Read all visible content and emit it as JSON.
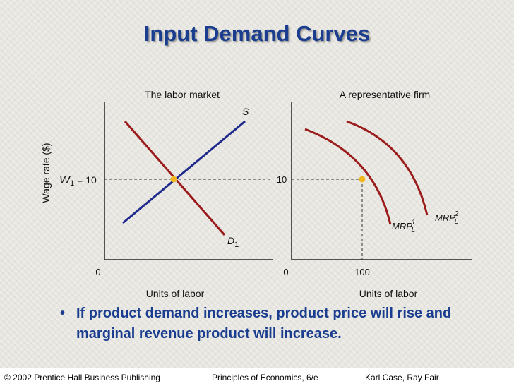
{
  "slide": {
    "title": "Input Demand Curves",
    "bullet": "If product demand increases, product price will rise and marginal revenue product will increase."
  },
  "footer": {
    "publisher": "© 2002 Prentice Hall Business Publishing",
    "book": "Principles of Economics, 6/e",
    "authors": "Karl Case, Ray Fair"
  },
  "labor_market": {
    "title": "The labor market",
    "ylabel": "Wage rate ($)",
    "xlabel": "Units of labor",
    "origin_label": "0",
    "wage_label": "W",
    "wage_subscript": "1",
    "wage_equals": " = 10",
    "supply_label": "S",
    "demand_label": "D",
    "demand_subscript": "1"
  },
  "firm": {
    "title": "A representative firm",
    "xlabel": "Units of labor",
    "origin_label": "0",
    "wage_tick": "10",
    "quantity_tick": "100",
    "mrp1_label": "MRP",
    "mrp1_sub": "L",
    "mrp1_sup": "1",
    "mrp2_label": "MRP",
    "mrp2_sub": "L",
    "mrp2_sup": "2"
  },
  "colors": {
    "title": "#1a3d8f",
    "supply": "#1f2a8c",
    "demand": "#9b1b1b",
    "equilibrium_dot": "#f2b61e",
    "axis": "#222222"
  }
}
